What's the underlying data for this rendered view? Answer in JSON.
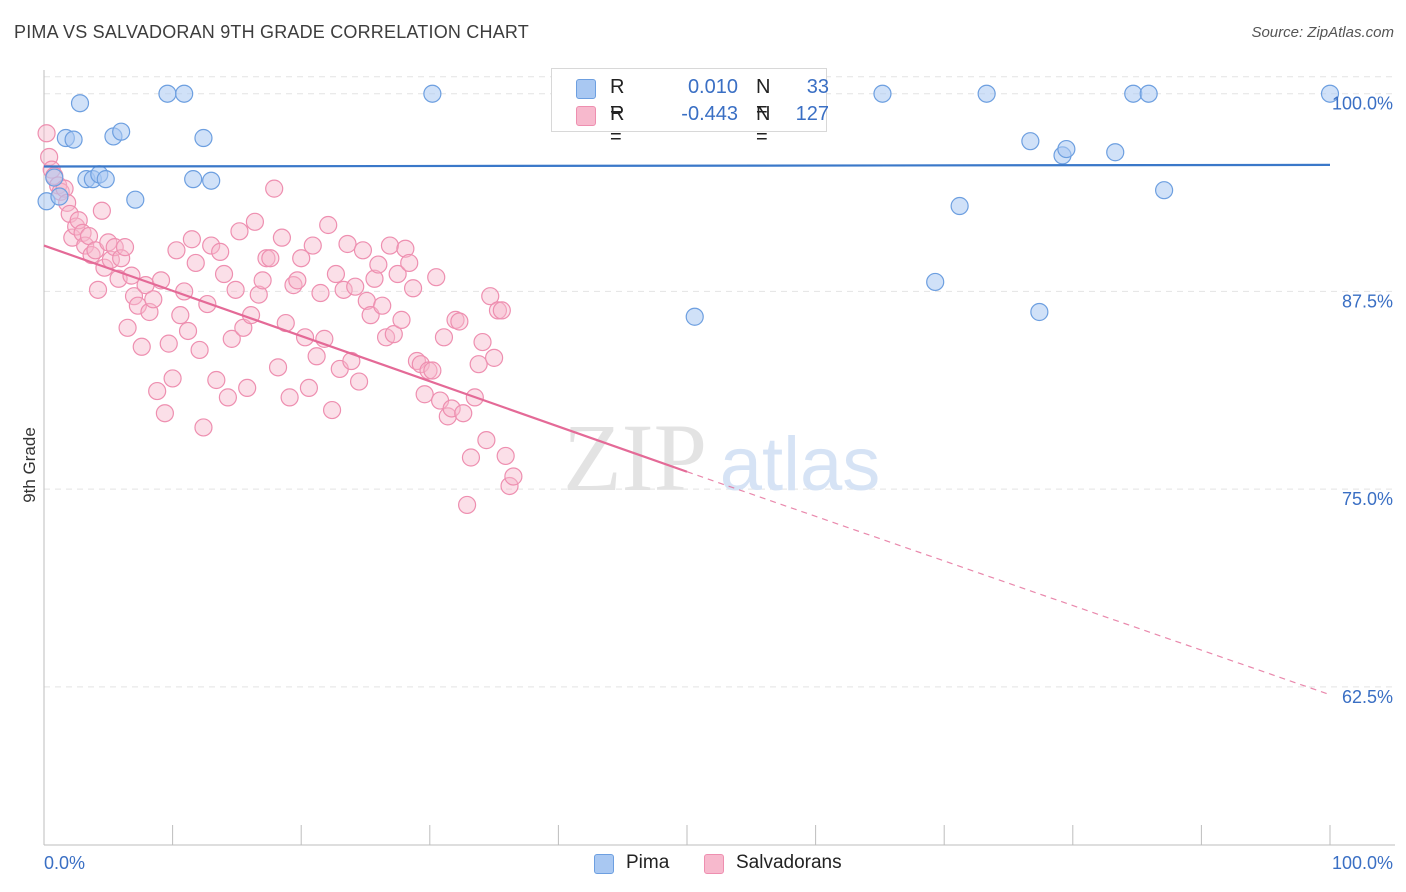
{
  "title": "PIMA VS SALVADORAN 9TH GRADE CORRELATION CHART",
  "source": "Source: ZipAtlas.com",
  "watermark": {
    "zip": "ZIP",
    "atlas": "atlas"
  },
  "colors": {
    "pima_fill": "#a9c8f2",
    "pima_stroke": "#6d9fe0",
    "pima_line": "#3a78c9",
    "salv_fill": "#f7b9cd",
    "salv_stroke": "#ee8fb0",
    "salv_line": "#e46a97",
    "grid": "#e4e4e4",
    "axis_text": "#3a6fc4"
  },
  "legend": {
    "rows": [
      {
        "series": "Pima",
        "r_label": "R =",
        "r_value": "0.010",
        "n_label": "N =",
        "n_value": "33"
      },
      {
        "series": "Salvadorans",
        "r_label": "R =",
        "r_value": "-0.443",
        "n_label": "N =",
        "n_value": "127"
      }
    ]
  },
  "bottom_legend": {
    "pima": "Pima",
    "salvadorans": "Salvadorans"
  },
  "chart_data": {
    "type": "scatter",
    "title": "PIMA VS SALVADORAN 9TH GRADE CORRELATION CHART",
    "xlabel": "",
    "ylabel": "9th Grade",
    "xlim": [
      0,
      100
    ],
    "ylim": [
      52.5,
      101.5
    ],
    "x_tick_labels": [
      "0.0%",
      "100.0%"
    ],
    "y_ticks": [
      62.5,
      75.0,
      87.5,
      100.0
    ],
    "y_tick_labels": [
      "62.5%",
      "75.0%",
      "87.5%",
      "100.0%"
    ],
    "grid": true,
    "series": [
      {
        "name": "Pima",
        "trend": {
          "x0": 0,
          "y0": 95.4,
          "x1": 100,
          "y1": 95.5
        },
        "points": [
          [
            0.2,
            93.2
          ],
          [
            0.8,
            94.7
          ],
          [
            1.2,
            93.5
          ],
          [
            1.7,
            97.2
          ],
          [
            2.3,
            97.1
          ],
          [
            2.8,
            99.4
          ],
          [
            3.3,
            94.6
          ],
          [
            3.8,
            94.6
          ],
          [
            4.3,
            94.9
          ],
          [
            4.8,
            94.6
          ],
          [
            5.4,
            97.3
          ],
          [
            6.0,
            97.6
          ],
          [
            7.1,
            93.3
          ],
          [
            9.6,
            100.0
          ],
          [
            10.9,
            100.0
          ],
          [
            11.6,
            94.6
          ],
          [
            12.4,
            97.2
          ],
          [
            13.0,
            94.5
          ],
          [
            30.2,
            100.0
          ],
          [
            50.6,
            85.9
          ],
          [
            65.2,
            100.0
          ],
          [
            69.3,
            88.1
          ],
          [
            71.2,
            92.9
          ],
          [
            73.3,
            100.0
          ],
          [
            76.7,
            97.0
          ],
          [
            77.4,
            86.2
          ],
          [
            79.2,
            96.1
          ],
          [
            79.5,
            96.5
          ],
          [
            83.3,
            96.3
          ],
          [
            84.7,
            100.0
          ],
          [
            85.9,
            100.0
          ],
          [
            87.1,
            93.9
          ],
          [
            100.0,
            100.0
          ]
        ]
      },
      {
        "name": "Salvadorans",
        "trend": {
          "x0": 0,
          "y0": 90.4,
          "x1": 50,
          "y1": 76.1,
          "x1_dash": 100,
          "y1_dash": 62.0
        },
        "points": [
          [
            0.2,
            97.5
          ],
          [
            0.4,
            96.0
          ],
          [
            0.6,
            95.2
          ],
          [
            0.8,
            94.8
          ],
          [
            1.1,
            94.2
          ],
          [
            1.3,
            93.8
          ],
          [
            1.6,
            94.0
          ],
          [
            1.8,
            93.1
          ],
          [
            2.0,
            92.4
          ],
          [
            2.2,
            90.9
          ],
          [
            2.5,
            91.6
          ],
          [
            2.7,
            92.0
          ],
          [
            3.0,
            91.2
          ],
          [
            3.2,
            90.4
          ],
          [
            3.5,
            91.0
          ],
          [
            3.7,
            89.8
          ],
          [
            4.0,
            90.1
          ],
          [
            4.2,
            87.6
          ],
          [
            4.5,
            92.6
          ],
          [
            4.7,
            89.0
          ],
          [
            5.0,
            90.6
          ],
          [
            5.2,
            89.5
          ],
          [
            5.5,
            90.3
          ],
          [
            5.8,
            88.3
          ],
          [
            6.0,
            89.6
          ],
          [
            6.3,
            90.3
          ],
          [
            6.5,
            85.2
          ],
          [
            6.8,
            88.5
          ],
          [
            7.0,
            87.2
          ],
          [
            7.3,
            86.6
          ],
          [
            7.6,
            84.0
          ],
          [
            7.9,
            87.9
          ],
          [
            8.2,
            86.2
          ],
          [
            8.5,
            87.0
          ],
          [
            8.8,
            81.2
          ],
          [
            9.1,
            88.2
          ],
          [
            9.4,
            79.8
          ],
          [
            9.7,
            84.2
          ],
          [
            10.0,
            82.0
          ],
          [
            10.3,
            90.1
          ],
          [
            10.6,
            86.0
          ],
          [
            10.9,
            87.5
          ],
          [
            11.2,
            85.0
          ],
          [
            11.5,
            90.8
          ],
          [
            11.8,
            89.3
          ],
          [
            12.1,
            83.8
          ],
          [
            12.4,
            78.9
          ],
          [
            12.7,
            86.7
          ],
          [
            13.0,
            90.4
          ],
          [
            13.4,
            81.9
          ],
          [
            13.7,
            90.0
          ],
          [
            14.0,
            88.6
          ],
          [
            14.3,
            80.8
          ],
          [
            14.6,
            84.5
          ],
          [
            14.9,
            87.6
          ],
          [
            15.2,
            91.3
          ],
          [
            15.5,
            85.2
          ],
          [
            15.8,
            81.4
          ],
          [
            16.1,
            86.0
          ],
          [
            16.4,
            91.9
          ],
          [
            16.7,
            87.3
          ],
          [
            17.0,
            88.2
          ],
          [
            17.3,
            89.6
          ],
          [
            17.6,
            89.6
          ],
          [
            17.9,
            94.0
          ],
          [
            18.2,
            82.7
          ],
          [
            18.5,
            90.9
          ],
          [
            18.8,
            85.5
          ],
          [
            19.1,
            80.8
          ],
          [
            19.4,
            87.9
          ],
          [
            19.7,
            88.2
          ],
          [
            20.0,
            89.6
          ],
          [
            20.3,
            84.6
          ],
          [
            20.6,
            81.4
          ],
          [
            20.9,
            90.4
          ],
          [
            21.2,
            83.4
          ],
          [
            21.5,
            87.4
          ],
          [
            21.8,
            84.5
          ],
          [
            22.1,
            91.7
          ],
          [
            22.4,
            80.0
          ],
          [
            22.7,
            88.6
          ],
          [
            23.0,
            82.6
          ],
          [
            23.3,
            87.6
          ],
          [
            23.6,
            90.5
          ],
          [
            23.9,
            83.1
          ],
          [
            24.2,
            87.8
          ],
          [
            24.5,
            81.8
          ],
          [
            24.8,
            90.1
          ],
          [
            25.1,
            86.9
          ],
          [
            25.4,
            86.0
          ],
          [
            25.7,
            88.3
          ],
          [
            26.0,
            89.2
          ],
          [
            26.3,
            86.6
          ],
          [
            26.6,
            84.6
          ],
          [
            26.9,
            90.4
          ],
          [
            27.2,
            84.8
          ],
          [
            27.5,
            88.6
          ],
          [
            27.8,
            85.7
          ],
          [
            28.1,
            90.2
          ],
          [
            28.4,
            89.3
          ],
          [
            28.7,
            87.7
          ],
          [
            29.0,
            83.1
          ],
          [
            29.3,
            82.9
          ],
          [
            29.6,
            81.0
          ],
          [
            29.9,
            82.5
          ],
          [
            30.2,
            82.5
          ],
          [
            30.5,
            88.4
          ],
          [
            30.8,
            80.6
          ],
          [
            31.1,
            84.6
          ],
          [
            31.4,
            79.6
          ],
          [
            31.7,
            80.1
          ],
          [
            32.0,
            85.7
          ],
          [
            32.3,
            85.6
          ],
          [
            32.6,
            79.8
          ],
          [
            32.9,
            74.0
          ],
          [
            33.2,
            77.0
          ],
          [
            33.5,
            80.8
          ],
          [
            33.8,
            82.9
          ],
          [
            34.1,
            84.3
          ],
          [
            34.4,
            78.1
          ],
          [
            34.7,
            87.2
          ],
          [
            35.0,
            83.3
          ],
          [
            35.3,
            86.3
          ],
          [
            35.6,
            86.3
          ],
          [
            35.9,
            77.1
          ],
          [
            36.2,
            75.2
          ],
          [
            36.5,
            75.8
          ]
        ]
      }
    ]
  }
}
